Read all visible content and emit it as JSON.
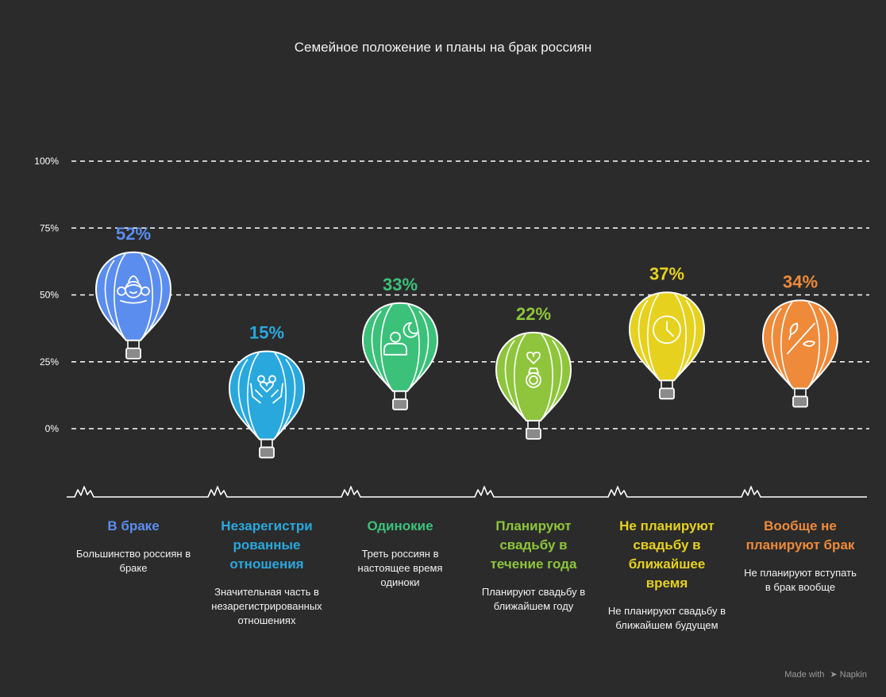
{
  "chart_data": {
    "type": "bar",
    "title": "Семейное положение и планы на брак россиян",
    "ylim": [
      0,
      100
    ],
    "yticks": [
      {
        "value": 0,
        "label": "0%"
      },
      {
        "value": 25,
        "label": "25%"
      },
      {
        "value": 50,
        "label": "50%"
      },
      {
        "value": 75,
        "label": "75%"
      },
      {
        "value": 100,
        "label": "100%"
      }
    ],
    "grid": true,
    "categories": [
      {
        "label": "В браке",
        "value": 52,
        "value_label": "52%",
        "color": "#5b8def",
        "icon": "family-icon",
        "description": "Большинство россиян в браке"
      },
      {
        "label": "Незарегистри рованные отношения",
        "value": 15,
        "value_label": "15%",
        "color": "#29a8dd",
        "icon": "hands-heart-icon",
        "description": "Значительная часть в незарегистрированных отношениях"
      },
      {
        "label": "Одинокие",
        "value": 33,
        "value_label": "33%",
        "color": "#3cc17a",
        "icon": "person-moon-icon",
        "description": "Треть россиян в настоящее время одиноки"
      },
      {
        "label": "Планируют свадьбу в течение года",
        "value": 22,
        "value_label": "22%",
        "color": "#8ec53c",
        "icon": "ring-heart-icon",
        "description": "Планируют свадьбу в ближайшем году"
      },
      {
        "label": "Не планируют свадьбу в ближайшее время",
        "value": 37,
        "value_label": "37%",
        "color": "#e6d11e",
        "icon": "clock-icon",
        "description": "Не планируют свадьбу в ближайшем будущем"
      },
      {
        "label": "Вообще не планируют брак",
        "value": 34,
        "value_label": "34%",
        "color": "#ee8a3a",
        "icon": "no-marriage-icon",
        "description": "Не планируют вступать в брак вообще"
      }
    ]
  },
  "credit": {
    "made_with": "Made with",
    "brand": "Napkin"
  }
}
